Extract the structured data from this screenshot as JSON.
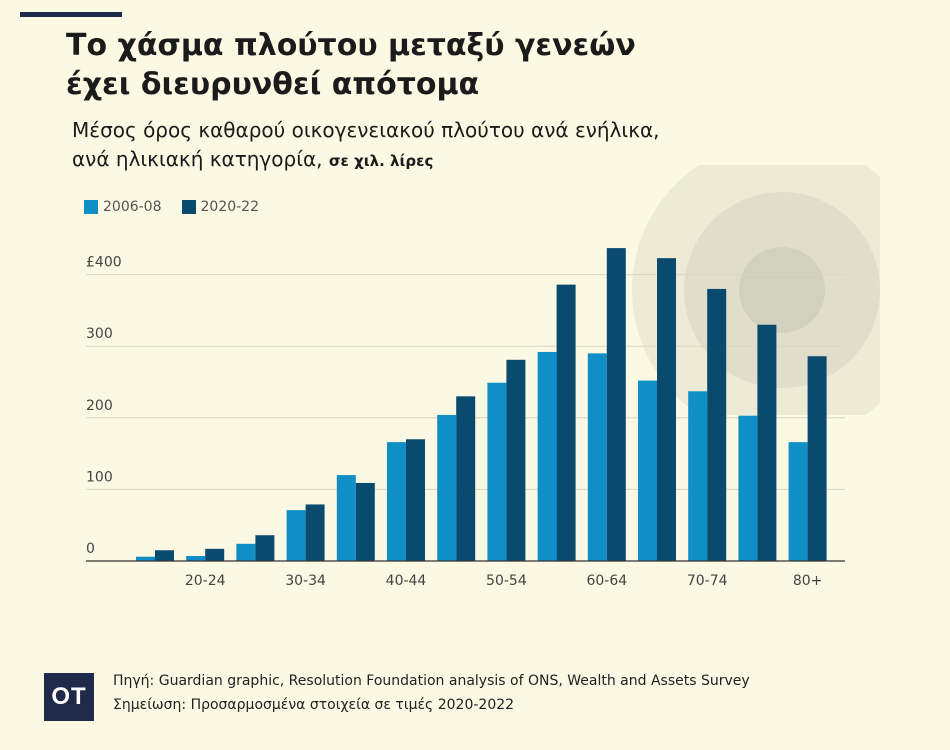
{
  "header": {
    "title_line1": "Το χάσμα πλούτου μεταξύ γενεών",
    "title_line2": "έχει διευρυνθεί απότομα",
    "subtitle_line1": "Μέσος όρος καθαρού οικογενειακού πλούτου  ανά ενήλικα,",
    "subtitle_line2": "ανά ηλικιακή κατηγορία,",
    "unit": "σε χιλ. λίρες"
  },
  "colors": {
    "series1": "#0f8fc6",
    "series2": "#0b4a6f",
    "background": "#fbf8e3",
    "grid": "#d9d6c3"
  },
  "chart_data": {
    "type": "bar",
    "categories": [
      "",
      "20-24",
      "",
      "30-34",
      "",
      "40-44",
      "",
      "50-54",
      "",
      "60-64",
      "",
      "70-74",
      "",
      "80+"
    ],
    "series": [
      {
        "name": "2006-08",
        "values": [
          6,
          7,
          24,
          71,
          120,
          166,
          204,
          249,
          292,
          290,
          252,
          237,
          203,
          166
        ]
      },
      {
        "name": "2020-22",
        "values": [
          15,
          17,
          36,
          79,
          109,
          170,
          230,
          281,
          386,
          437,
          423,
          380,
          330,
          286
        ]
      }
    ],
    "yticks": [
      {
        "value": 0,
        "label": "0"
      },
      {
        "value": 100,
        "label": "100"
      },
      {
        "value": 200,
        "label": "200"
      },
      {
        "value": 300,
        "label": "300"
      },
      {
        "value": 400,
        "label": "£400"
      }
    ],
    "ylim": [
      0,
      460
    ],
    "grid": true,
    "legend": "top-left"
  },
  "footer": {
    "logo": "OT",
    "source": "Πηγή: Guardian graphic,  Resolution Foundation analysis of ONS, Wealth and Assets Survey",
    "note": "Σημείωση: Προσαρμοσμένα στοιχεία σε τιμές 2020-2022"
  }
}
